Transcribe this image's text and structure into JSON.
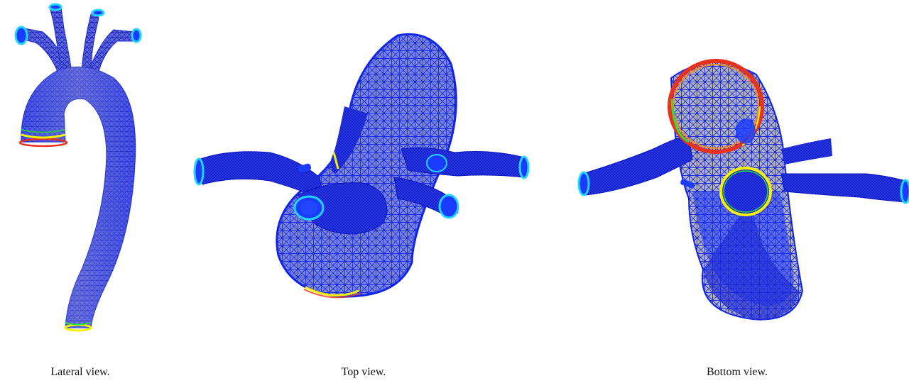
{
  "captions": {
    "lateral": "Lateral view.",
    "top": "Top view.",
    "bottom": "Bottom view."
  },
  "colors": {
    "vessel_blue": "#1530ff",
    "mesh_blue": "#0a14d8",
    "cyan_ring": "#1fd6ff",
    "yellow_ring": "#f5f200",
    "red_ring": "#e8321c",
    "green_ring": "#34d93b"
  }
}
